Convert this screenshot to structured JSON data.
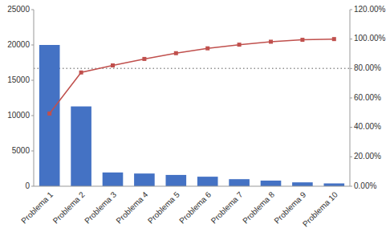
{
  "chart_data": {
    "type": "bar",
    "categories": [
      "Problema 1",
      "Problema 2",
      "Problema 3",
      "Problema 4",
      "Problema 5",
      "Problema 6",
      "Problema 7",
      "Problema 8",
      "Problema 9",
      "Problema 10"
    ],
    "series": [
      {
        "type": "bar",
        "color": "#4472C4",
        "values": [
          20000,
          11300,
          1950,
          1800,
          1600,
          1350,
          1000,
          800,
          550,
          400
        ]
      },
      {
        "type": "line",
        "axis": "y2",
        "color": "#C0504D",
        "marker": "square",
        "values": [
          0.494,
          0.773,
          0.821,
          0.865,
          0.904,
          0.937,
          0.962,
          0.982,
          0.995,
          1.0
        ]
      }
    ],
    "reference_lines": [
      {
        "axis": "y2",
        "value": 0.8,
        "color": "#909090",
        "line_style": "dotted"
      }
    ],
    "ylim": [
      0,
      25000
    ],
    "yticks": [
      0,
      5000,
      10000,
      15000,
      20000,
      25000
    ],
    "y2lim": [
      0.0,
      1.2
    ],
    "y2ticks": [
      {
        "value": 0.0,
        "label": "0.00%"
      },
      {
        "value": 0.2,
        "label": "20.00%"
      },
      {
        "value": 0.4,
        "label": "40.00%"
      },
      {
        "value": 0.6,
        "label": "60.00%"
      },
      {
        "value": 0.8,
        "label": "80.00%"
      },
      {
        "value": 1.0,
        "label": "100.00%"
      },
      {
        "value": 1.2,
        "label": "120.00%"
      }
    ],
    "grid": false
  }
}
